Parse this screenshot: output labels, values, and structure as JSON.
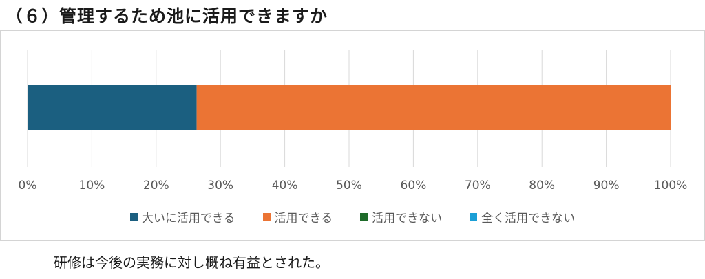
{
  "heading": "（６）管理するため池に活用できますか",
  "caption": "研修は今後の実務に対し概ね有益とされた。",
  "chart_data": {
    "type": "bar",
    "orientation": "horizontal",
    "stacked": true,
    "normalized_percent": true,
    "categories": [
      ""
    ],
    "xlim": [
      0,
      100
    ],
    "x_ticks": [
      "0%",
      "10%",
      "20%",
      "30%",
      "40%",
      "50%",
      "60%",
      "70%",
      "80%",
      "90%",
      "100%"
    ],
    "grid": true,
    "legend_position": "bottom",
    "series": [
      {
        "name": "大いに活用できる",
        "values": [
          26.3
        ],
        "color": "#1b5f80"
      },
      {
        "name": "活用できる",
        "values": [
          73.7
        ],
        "color": "#eb7434"
      },
      {
        "name": "活用できない",
        "values": [
          0
        ],
        "color": "#1e6b2a"
      },
      {
        "name": "全く活用できない",
        "values": [
          0
        ],
        "color": "#1b9fd6"
      }
    ]
  }
}
